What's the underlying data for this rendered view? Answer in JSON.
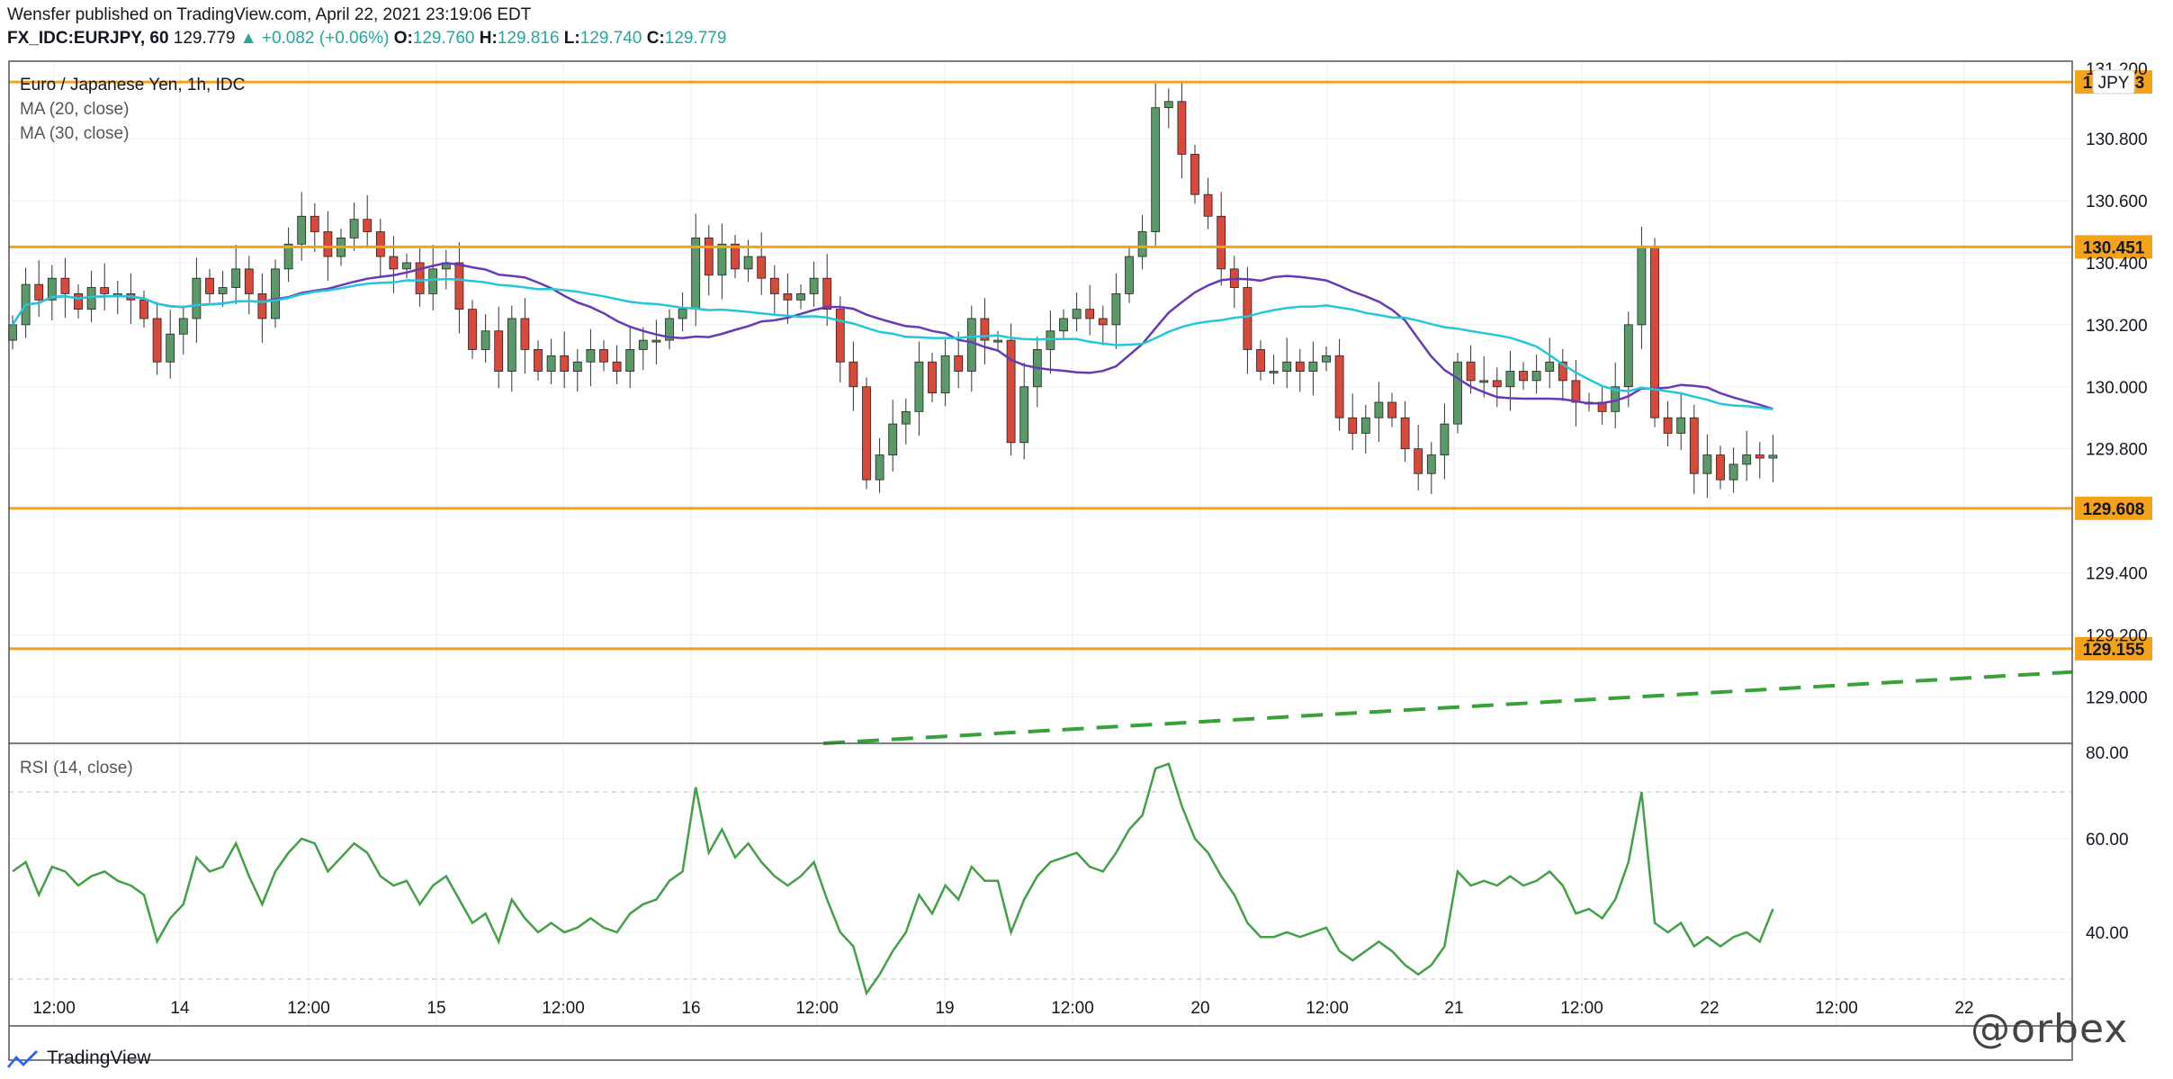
{
  "header": {
    "line1": "Wensfer published on TradingView.com, April 22, 2021 23:19:06 EDT",
    "symbol": "FX_IDC:EURJPY, 60",
    "last": "129.779",
    "change": "▲ +0.082 (+0.06%)",
    "o_label": "O:",
    "o": "129.760",
    "h_label": "H:",
    "h": "129.816",
    "l_label": "L:",
    "l": "129.740",
    "c_label": "C:",
    "c": "129.779"
  },
  "chart_data": [
    {
      "type": "candlestick",
      "title": "Euro / Japanese Yen, 1h, IDC",
      "indicators": [
        "MA (20, close)",
        "MA (30, close)"
      ],
      "currency": "JPY",
      "ylim": [
        128.85,
        131.05
      ],
      "y_ticks": [
        "131.200",
        "130.800",
        "130.600",
        "130.400",
        "130.200",
        "130.000",
        "129.800",
        "129.400",
        "129.200",
        "129.000"
      ],
      "horizontal_levels": [
        {
          "value": 130.983,
          "label": "130.983",
          "color": "#f5a21b"
        },
        {
          "value": 130.451,
          "label": "130.451",
          "color": "#f5a21b"
        },
        {
          "value": 129.608,
          "label": "129.608",
          "color": "#f5a21b"
        },
        {
          "value": 129.155,
          "label": "129.155",
          "color": "#f5a21b"
        }
      ],
      "trendline": {
        "start": 128.85,
        "end": 129.08,
        "color": "#3aa03a",
        "style": "dashed"
      },
      "x_ticks": [
        "12:00",
        "14",
        "12:00",
        "15",
        "12:00",
        "16",
        "12:00",
        "19",
        "12:00",
        "20",
        "12:00",
        "21",
        "12:00",
        "22",
        "12:00",
        "22"
      ],
      "close": [
        130.2,
        130.33,
        130.28,
        130.35,
        130.3,
        130.25,
        130.32,
        130.3,
        130.3,
        130.28,
        130.22,
        130.08,
        130.17,
        130.22,
        130.35,
        130.3,
        130.32,
        130.38,
        130.3,
        130.22,
        130.38,
        130.46,
        130.55,
        130.5,
        130.42,
        130.48,
        130.54,
        130.5,
        130.42,
        130.38,
        130.4,
        130.3,
        130.38,
        130.4,
        130.25,
        130.12,
        130.18,
        130.05,
        130.22,
        130.12,
        130.05,
        130.1,
        130.05,
        130.08,
        130.12,
        130.08,
        130.05,
        130.12,
        130.15,
        130.15,
        130.22,
        130.25,
        130.48,
        130.36,
        130.46,
        130.38,
        130.42,
        130.35,
        130.3,
        130.28,
        130.3,
        130.35,
        130.25,
        130.08,
        130.0,
        129.7,
        129.78,
        129.88,
        129.92,
        130.08,
        129.98,
        130.1,
        130.05,
        130.22,
        130.15,
        130.15,
        129.82,
        130.0,
        130.12,
        130.18,
        130.22,
        130.25,
        130.22,
        130.2,
        130.3,
        130.42,
        130.5,
        130.9,
        130.92,
        130.75,
        130.62,
        130.55,
        130.38,
        130.32,
        130.12,
        130.05,
        130.05,
        130.08,
        130.05,
        130.08,
        130.1,
        129.9,
        129.85,
        129.9,
        129.95,
        129.9,
        129.8,
        129.72,
        129.78,
        129.88,
        130.08,
        130.02,
        130.02,
        130.0,
        130.05,
        130.02,
        130.05,
        130.08,
        130.02,
        129.95,
        129.95,
        129.92,
        130.0,
        130.2,
        130.45,
        129.9,
        129.85,
        129.9,
        129.72,
        129.78,
        129.7,
        129.75,
        129.78,
        129.77,
        129.779
      ],
      "series": [
        {
          "name": "MA (20, close)",
          "color": "#673ab7"
        },
        {
          "name": "MA (30, close)",
          "color": "#26c6da"
        }
      ]
    },
    {
      "type": "line",
      "title": "RSI (14, close)",
      "ylim": [
        20,
        80
      ],
      "y_ticks": [
        "80.00",
        "60.00",
        "40.00"
      ],
      "bands": [
        70,
        30
      ],
      "series": [
        {
          "name": "RSI",
          "color": "#43a047",
          "values": [
            53,
            55,
            48,
            54,
            53,
            50,
            52,
            53,
            51,
            50,
            48,
            38,
            43,
            46,
            56,
            53,
            54,
            59,
            52,
            46,
            53,
            57,
            60,
            59,
            53,
            56,
            59,
            57,
            52,
            50,
            51,
            46,
            50,
            52,
            47,
            42,
            44,
            38,
            47,
            43,
            40,
            42,
            40,
            41,
            43,
            41,
            40,
            44,
            46,
            47,
            51,
            53,
            71,
            57,
            62,
            56,
            59,
            55,
            52,
            50,
            52,
            55,
            47,
            40,
            37,
            27,
            31,
            36,
            40,
            48,
            44,
            50,
            47,
            54,
            51,
            51,
            40,
            47,
            52,
            55,
            56,
            57,
            54,
            53,
            57,
            62,
            65,
            75,
            76,
            67,
            60,
            57,
            52,
            48,
            42,
            39,
            39,
            40,
            39,
            40,
            41,
            36,
            34,
            36,
            38,
            36,
            33,
            31,
            33,
            37,
            53,
            50,
            51,
            50,
            52,
            50,
            51,
            53,
            50,
            44,
            45,
            43,
            47,
            55,
            70,
            42,
            40,
            42,
            37,
            39,
            37,
            39,
            40,
            38,
            45
          ]
        }
      ]
    }
  ],
  "footer": {
    "logo": "TradingView",
    "watermark": "@orbex"
  }
}
